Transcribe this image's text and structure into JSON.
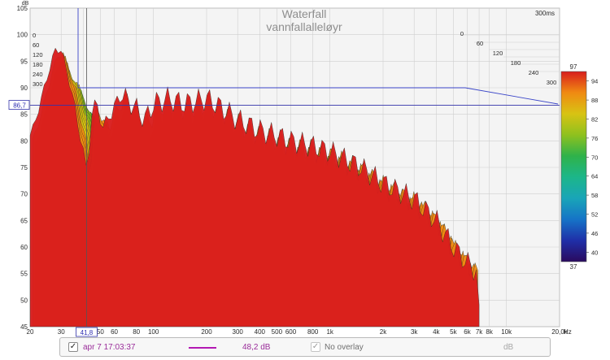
{
  "chart_data": {
    "type": "area",
    "title": "Waterfall",
    "subtitle": "vannfallalleløyr",
    "xlabel": "",
    "ylabel": "dB",
    "x_scale": "log",
    "xlim": [
      20,
      20000
    ],
    "ylim": [
      45,
      105
    ],
    "x_ticks": [
      "20",
      "30",
      "40",
      "50",
      "60",
      "80",
      "100",
      "200",
      "300",
      "400",
      "500",
      "600",
      "800",
      "1k",
      "2k",
      "3k",
      "4k",
      "5k",
      "6k",
      "7k",
      "8k",
      "10k",
      "20,0k"
    ],
    "x_unit": "Hz",
    "y_ticks": [
      "45",
      "50",
      "55",
      "60",
      "65",
      "70",
      "75",
      "80",
      "85",
      "90",
      "95",
      "100",
      "105"
    ],
    "time_ticks_ms": [
      "0",
      "60",
      "120",
      "180",
      "240",
      "300"
    ],
    "time_label": "300ms",
    "cursor_x_label": "41,8",
    "cursor_y_label": "86,7",
    "colorbar": {
      "max_label": "97",
      "min_label": "37",
      "ticks": [
        "94",
        "88",
        "82",
        "76",
        "70",
        "64",
        "58",
        "52",
        "46",
        "40"
      ]
    },
    "envelope": {
      "x_hz": [
        20,
        22,
        24,
        26,
        28,
        30,
        33,
        36,
        40,
        42,
        45,
        48,
        52,
        56,
        60,
        65,
        70,
        80,
        90,
        100,
        120,
        150,
        200,
        250,
        300,
        400,
        500,
        600,
        800,
        1000,
        1500,
        2000,
        3000,
        4000,
        5000,
        6000,
        7000
      ],
      "y_db": [
        81,
        85,
        90,
        94,
        97.5,
        97,
        92,
        86,
        78,
        74,
        86,
        87,
        82,
        85,
        86,
        89,
        88,
        86,
        84,
        87,
        88,
        87,
        88,
        86,
        84,
        82,
        81,
        80,
        79,
        78,
        75,
        72,
        69,
        65,
        60,
        57,
        55
      ]
    },
    "colors": [
      "#2a0a5e",
      "#1f2fa8",
      "#1673c7",
      "#19a5b8",
      "#1cb68a",
      "#2fb24a",
      "#8fc11e",
      "#d8c313",
      "#f08a12",
      "#d81d1d"
    ]
  },
  "legend": {
    "checked_glyph": "✓",
    "date": "apr 7 17:03:37",
    "value": "48,2 dB",
    "overlay": "No overlay",
    "overlay_unit": "dB",
    "line_color": "#b319b3"
  }
}
